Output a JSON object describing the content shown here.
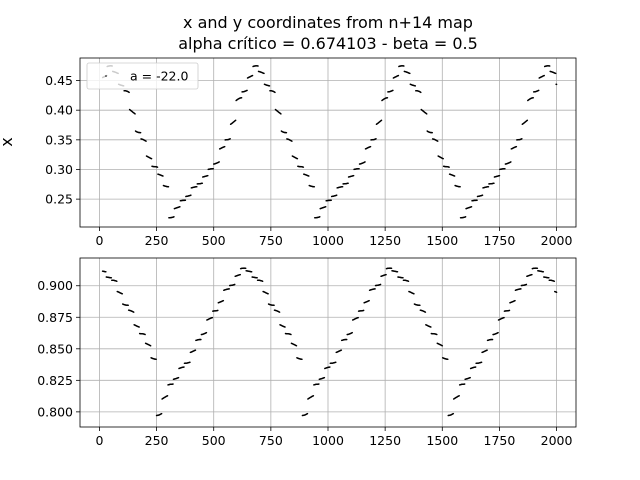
{
  "figure": {
    "title_line1": "x and y coordinates from n+14 map",
    "title_line2": "alpha crítico = 0.674103 - beta = 0.5"
  },
  "chart_data": [
    {
      "type": "scatter",
      "panel": "top",
      "ylabel": "x",
      "xlim": [
        -85,
        2085
      ],
      "ylim": [
        0.203,
        0.488
      ],
      "x_ticks": [
        0,
        250,
        500,
        750,
        1000,
        1250,
        1500,
        1750,
        2000
      ],
      "x_tick_labels": [
        "0",
        "250",
        "500",
        "750",
        "1000",
        "1250",
        "1500",
        "1750",
        "2000"
      ],
      "y_ticks": [
        0.25,
        0.3,
        0.35,
        0.4,
        0.45
      ],
      "y_tick_labels": [
        "0.25",
        "0.30",
        "0.35",
        "0.40",
        "0.45"
      ],
      "grid": true,
      "legend": {
        "label": "a = -22.0",
        "placement": "top-left"
      },
      "point_color": "#000000",
      "series": [
        {
          "name": "a = -22.0",
          "n_start": 14,
          "n_end": 2000,
          "step": 2,
          "period_in_n": 638,
          "phase": 0.5245,
          "curve": "staircase",
          "x_key": [
            0,
            0.1,
            0.2,
            0.3,
            0.4,
            0.5,
            0.6,
            0.7,
            0.8,
            0.9,
            1.0
          ],
          "y_key": [
            0.216,
            0.248,
            0.275,
            0.302,
            0.35,
            0.427,
            0.475,
            0.435,
            0.36,
            0.305,
            0.268
          ]
        }
      ]
    },
    {
      "type": "scatter",
      "panel": "bottom",
      "ylabel": "y",
      "xlim": [
        -85,
        2085
      ],
      "ylim": [
        0.788,
        0.922
      ],
      "x_ticks": [
        0,
        250,
        500,
        750,
        1000,
        1250,
        1500,
        1750,
        2000
      ],
      "x_tick_labels": [
        "0",
        "250",
        "500",
        "750",
        "1000",
        "1250",
        "1500",
        "1750",
        "2000"
      ],
      "y_ticks": [
        0.8,
        0.825,
        0.85,
        0.875,
        0.9
      ],
      "y_tick_labels": [
        "0.800",
        "0.825",
        "0.850",
        "0.875",
        "0.900"
      ],
      "grid": true,
      "point_color": "#000000",
      "series": [
        {
          "name": "a = -22.0",
          "n_start": 14,
          "n_end": 2000,
          "step": 2,
          "period_in_n": 638,
          "phase": 0.6095,
          "curve": "staircase",
          "x_key": [
            0,
            0.1,
            0.2,
            0.3,
            0.4,
            0.5,
            0.6,
            0.7,
            0.8,
            0.9,
            1.0
          ],
          "y_key": [
            0.795,
            0.822,
            0.838,
            0.858,
            0.88,
            0.899,
            0.914,
            0.905,
            0.884,
            0.862,
            0.84
          ]
        }
      ]
    }
  ]
}
